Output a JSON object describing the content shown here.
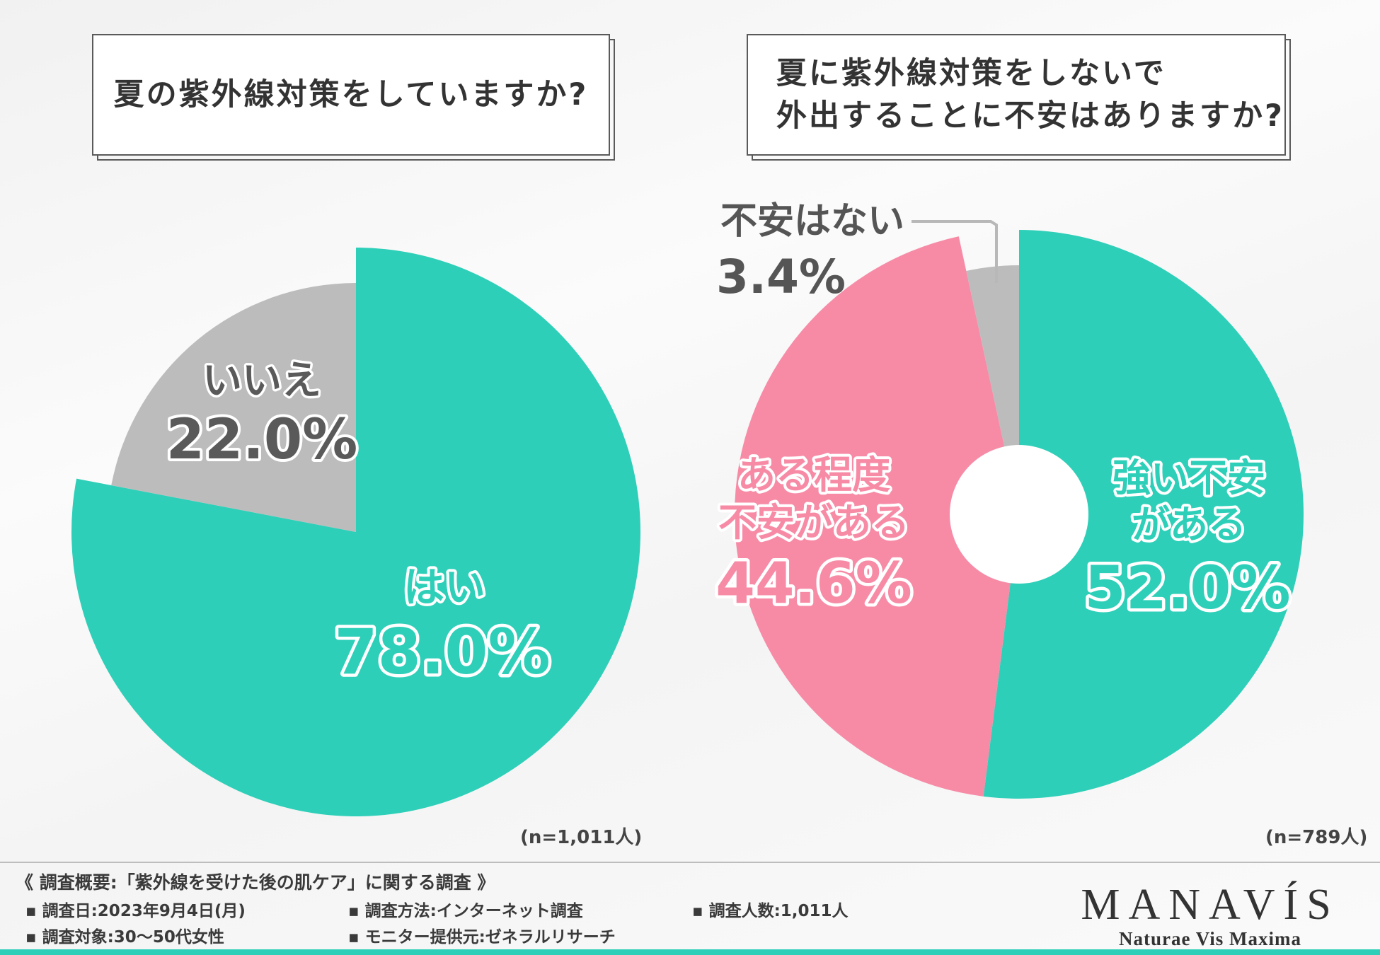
{
  "titles": {
    "left": "夏の紫外線対策をしていますか?",
    "right_line1": "夏に紫外線対策をしないで",
    "right_line2": "外出することに不安はありますか?"
  },
  "chart_data": [
    {
      "type": "pie",
      "title": "夏の紫外線対策をしていますか?",
      "sample": "(n=1,011人)",
      "slices": [
        {
          "label": "はい",
          "value": 78.0,
          "value_label": "78.0%",
          "color": "#2ecfb8",
          "exploded": true
        },
        {
          "label": "いいえ",
          "value": 22.0,
          "value_label": "22.0%",
          "color": "#bcbcbc",
          "exploded": false
        }
      ]
    },
    {
      "type": "pie",
      "title": "夏に紫外線対策をしないで外出することに不安はありますか?",
      "sample": "(n=789人)",
      "slices": [
        {
          "label": "強い不安がある",
          "label_line1": "強い不安",
          "label_line2": "がある",
          "value": 52.0,
          "value_label": "52.0%",
          "color": "#2ecfb8",
          "exploded": true
        },
        {
          "label": "ある程度不安がある",
          "label_line1": "ある程度",
          "label_line2": "不安がある",
          "value": 44.6,
          "value_label": "44.6%",
          "color": "#f78ba6",
          "exploded": true
        },
        {
          "label": "不安はない",
          "value": 3.4,
          "value_label": "3.4%",
          "color": "#bcbcbc",
          "exploded": false
        }
      ]
    }
  ],
  "survey": {
    "title": "《 調査概要:「紫外線を受けた後の肌ケア」に関する調査 》",
    "date": "調査日:2023年9月4日(月)",
    "method": "調査方法:インターネット調査",
    "count": "調査人数:1,011人",
    "target": "調査対象:30〜50代女性",
    "provider": "モニター提供元:ゼネラルリサーチ"
  },
  "logo": {
    "brand": "MANAVÍS",
    "tagline": "Naturae Vis Maxima"
  },
  "colors": {
    "teal": "#2ecfb8",
    "pink": "#f78ba6",
    "gray": "#bcbcbc"
  }
}
